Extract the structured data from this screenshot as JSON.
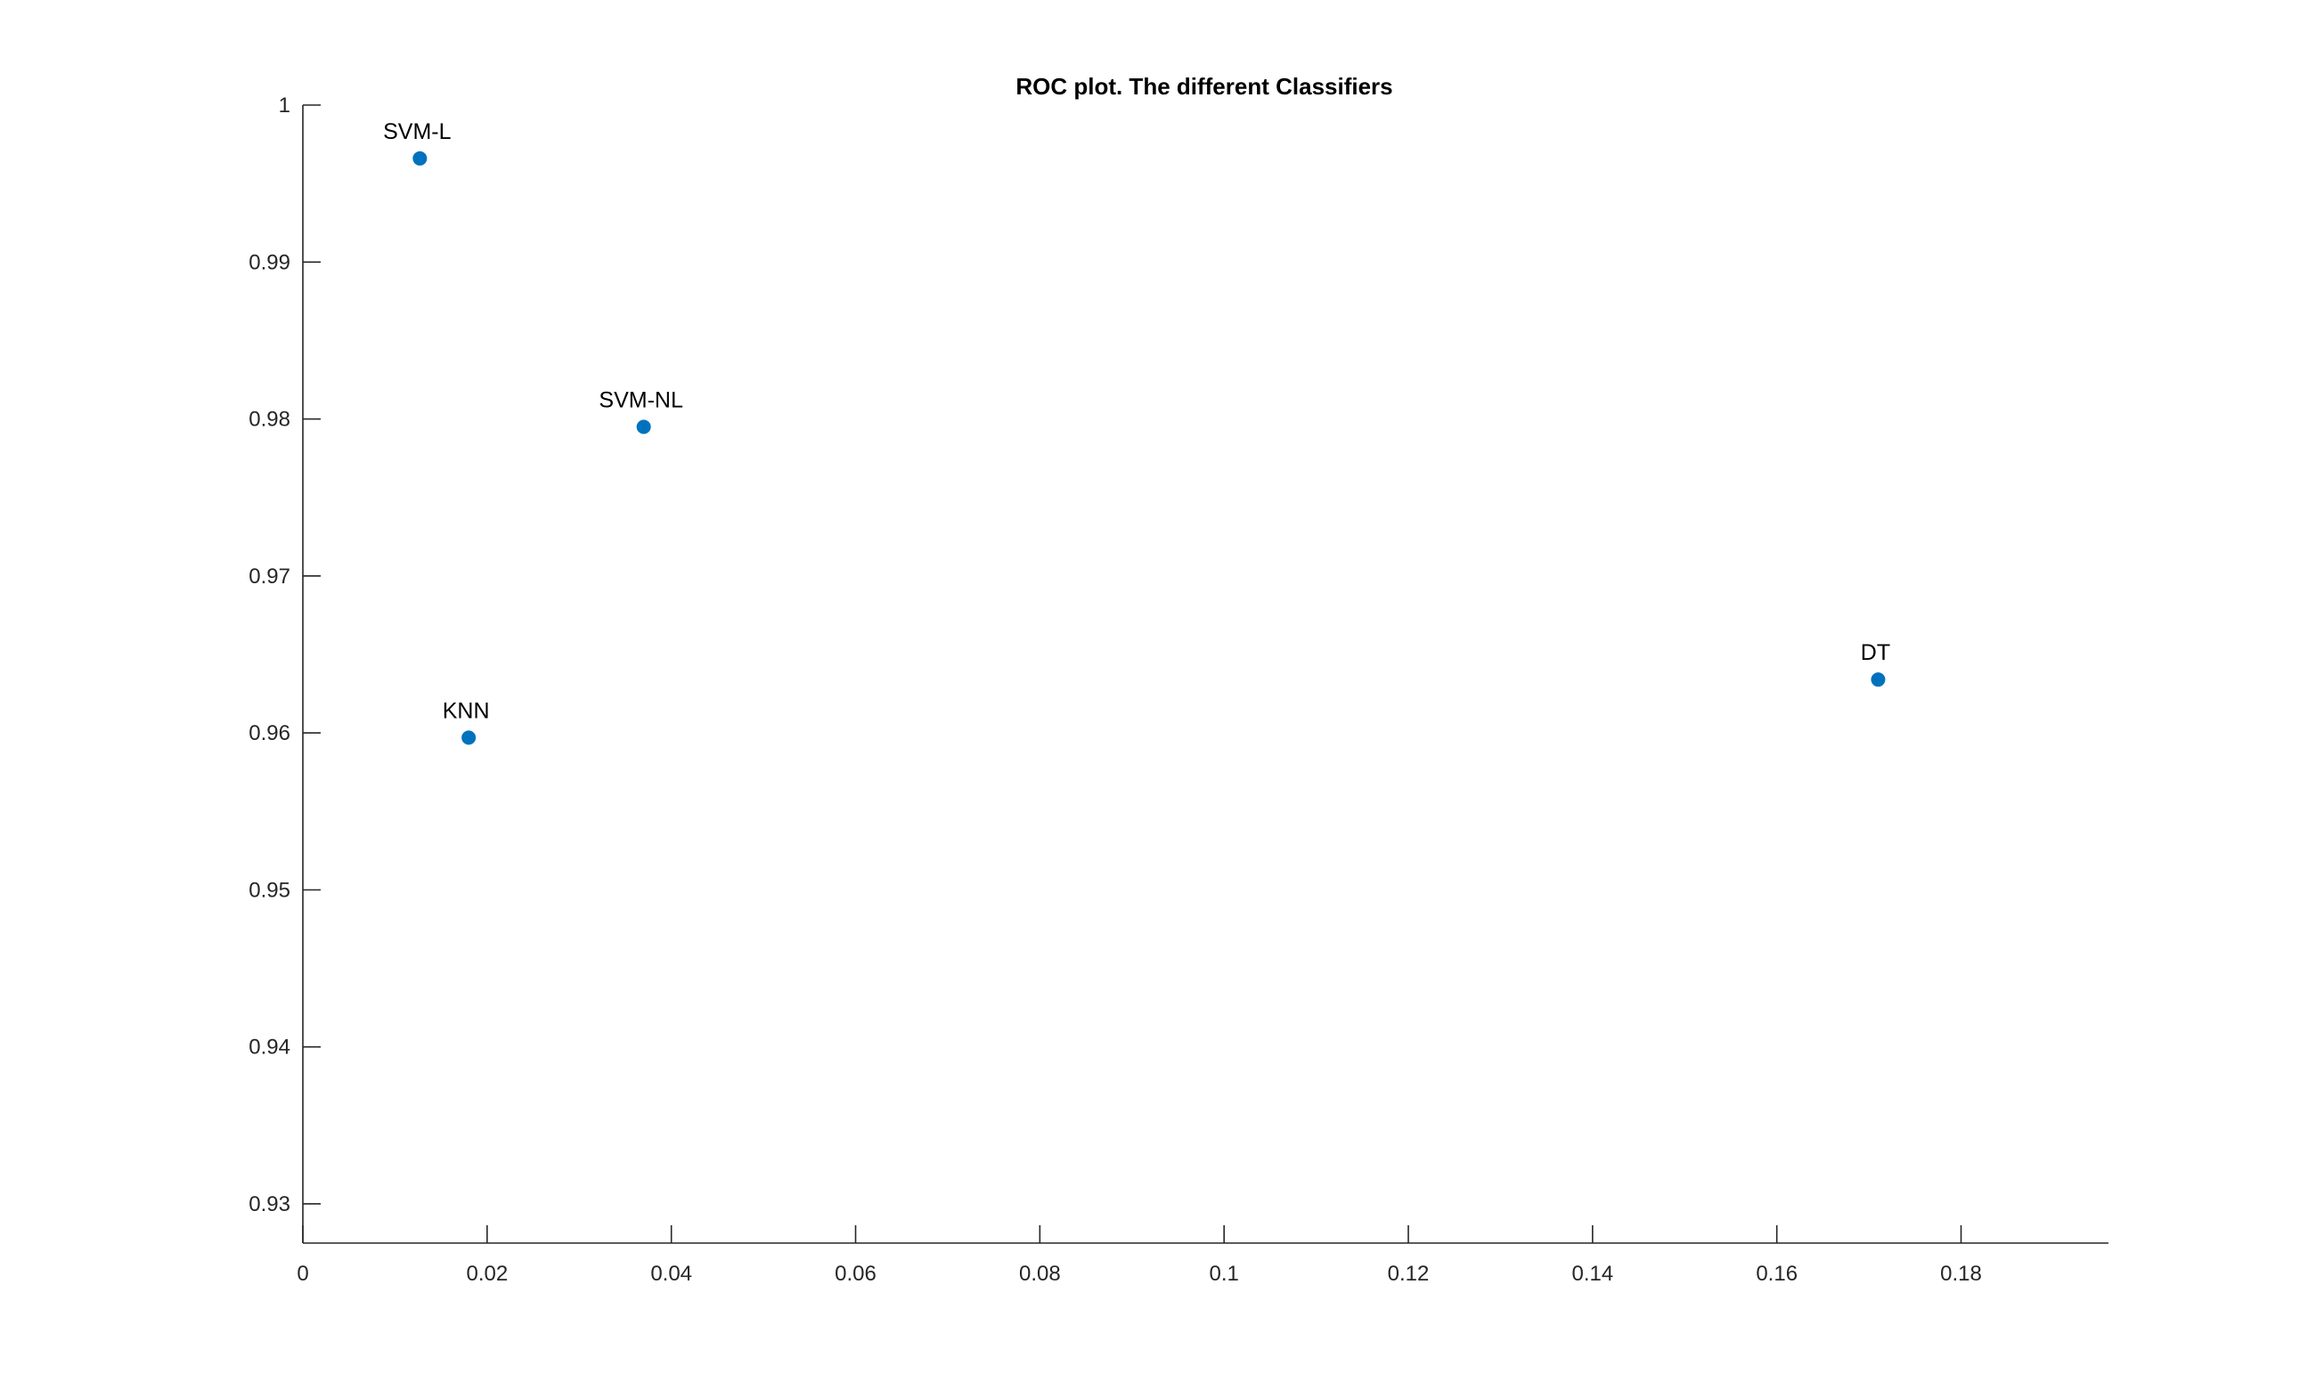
{
  "chart_data": {
    "type": "scatter",
    "title": "ROC plot. The different Classifiers",
    "xlabel": "",
    "ylabel": "",
    "xlim": [
      0,
      0.196
    ],
    "ylim": [
      0.9275,
      1.0
    ],
    "x_ticks": [
      "0",
      "0.02",
      "0.04",
      "0.06",
      "0.08",
      "0.1",
      "0.12",
      "0.14",
      "0.16",
      "0.18"
    ],
    "x_tick_values": [
      0,
      0.02,
      0.04,
      0.06,
      0.08,
      0.1,
      0.12,
      0.14,
      0.16,
      0.18
    ],
    "y_ticks": [
      "0.93",
      "0.94",
      "0.95",
      "0.96",
      "0.97",
      "0.98",
      "0.99",
      "1"
    ],
    "y_tick_values": [
      0.93,
      0.94,
      0.95,
      0.96,
      0.97,
      0.98,
      0.99,
      1.0
    ],
    "grid": false,
    "marker_color": "#0072BD",
    "points": [
      {
        "label": "SVM-L",
        "x": 0.0127,
        "y": 0.9966
      },
      {
        "label": "SVM-NL",
        "x": 0.037,
        "y": 0.9795
      },
      {
        "label": "KNN",
        "x": 0.018,
        "y": 0.9597
      },
      {
        "label": "DT",
        "x": 0.171,
        "y": 0.9634
      }
    ]
  }
}
